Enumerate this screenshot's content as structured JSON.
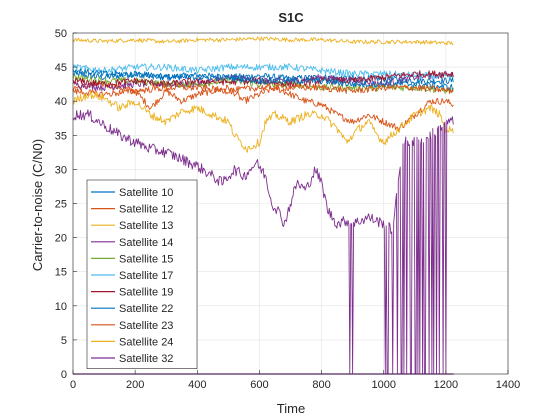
{
  "chart_data": {
    "type": "line",
    "title": "S1C",
    "xlabel": "Time",
    "ylabel": "Carrier-to-noise (C/N0)",
    "xlim": [
      0,
      1400
    ],
    "ylim": [
      0,
      50
    ],
    "xticks": [
      "0",
      "200",
      "400",
      "600",
      "800",
      "1000",
      "1200",
      "1400"
    ],
    "yticks": [
      "0",
      "5",
      "10",
      "15",
      "20",
      "25",
      "30",
      "35",
      "40",
      "45",
      "50"
    ],
    "grid": true,
    "legend_position": "lower-left",
    "series": [
      {
        "name": "Satellite 10",
        "color": "#0072BD",
        "noise": 0.5,
        "points": [
          [
            0,
            44.0
          ],
          [
            100,
            43.5
          ],
          [
            200,
            44.0
          ],
          [
            300,
            43.5
          ],
          [
            400,
            43.8
          ],
          [
            500,
            43.5
          ],
          [
            600,
            43.7
          ],
          [
            700,
            43.3
          ],
          [
            800,
            43.5
          ],
          [
            900,
            43.3
          ],
          [
            1000,
            43.3
          ],
          [
            1100,
            43.0
          ],
          [
            1225,
            43.0
          ]
        ]
      },
      {
        "name": "Satellite 12",
        "color": "#D95319",
        "noise": 0.5,
        "points": [
          [
            0,
            42.0
          ],
          [
            100,
            42.5
          ],
          [
            200,
            41.5
          ],
          [
            250,
            39.0
          ],
          [
            300,
            41.5
          ],
          [
            350,
            40.0
          ],
          [
            400,
            41.0
          ],
          [
            500,
            42.0
          ],
          [
            550,
            40.0
          ],
          [
            600,
            41.0
          ],
          [
            650,
            42.0
          ],
          [
            700,
            41.0
          ],
          [
            750,
            40.0
          ],
          [
            800,
            39.5
          ],
          [
            850,
            38.0
          ],
          [
            900,
            37.0
          ],
          [
            950,
            38.0
          ],
          [
            1000,
            37.0
          ],
          [
            1050,
            36.0
          ],
          [
            1100,
            38.0
          ],
          [
            1150,
            40.0
          ],
          [
            1200,
            40.0
          ],
          [
            1225,
            39.5
          ]
        ]
      },
      {
        "name": "Satellite 13",
        "color": "#EDB120",
        "noise": 0.3,
        "points": [
          [
            0,
            49.0
          ],
          [
            100,
            48.8
          ],
          [
            200,
            49.0
          ],
          [
            300,
            48.7
          ],
          [
            400,
            49.0
          ],
          [
            500,
            49.0
          ],
          [
            600,
            49.2
          ],
          [
            700,
            49.0
          ],
          [
            800,
            49.0
          ],
          [
            900,
            48.7
          ],
          [
            1000,
            48.7
          ],
          [
            1100,
            48.7
          ],
          [
            1225,
            48.5
          ]
        ]
      },
      {
        "name": "Satellite 14",
        "color": "#7E2F8E",
        "noise": 0.5,
        "points": [
          [
            0,
            42.5
          ],
          [
            100,
            42.0
          ],
          [
            200,
            42.5
          ],
          [
            300,
            42.5
          ],
          [
            400,
            42.5
          ],
          [
            500,
            43.5
          ],
          [
            600,
            43.0
          ],
          [
            700,
            43.0
          ],
          [
            800,
            43.5
          ],
          [
            900,
            43.0
          ],
          [
            1000,
            42.5
          ],
          [
            1100,
            43.5
          ],
          [
            1225,
            44.0
          ]
        ]
      },
      {
        "name": "Satellite 15",
        "color": "#77AC30",
        "noise": 0.5,
        "points": [
          [
            0,
            43.5
          ],
          [
            100,
            43.0
          ],
          [
            200,
            43.0
          ],
          [
            300,
            42.5
          ],
          [
            400,
            42.5
          ],
          [
            500,
            43.0
          ],
          [
            600,
            42.5
          ],
          [
            700,
            42.5
          ],
          [
            800,
            42.0
          ],
          [
            900,
            42.0
          ],
          [
            1000,
            42.0
          ],
          [
            1100,
            42.0
          ],
          [
            1225,
            41.5
          ]
        ]
      },
      {
        "name": "Satellite 17",
        "color": "#4DBEEE",
        "noise": 0.5,
        "points": [
          [
            0,
            45.0
          ],
          [
            100,
            44.5
          ],
          [
            200,
            45.0
          ],
          [
            300,
            45.0
          ],
          [
            400,
            44.5
          ],
          [
            500,
            45.0
          ],
          [
            600,
            45.0
          ],
          [
            700,
            45.0
          ],
          [
            800,
            44.5
          ],
          [
            900,
            44.0
          ],
          [
            1000,
            44.0
          ],
          [
            1100,
            43.8
          ],
          [
            1225,
            43.5
          ]
        ]
      },
      {
        "name": "Satellite 19",
        "color": "#A2142F",
        "noise": 0.5,
        "points": [
          [
            0,
            43.0
          ],
          [
            100,
            42.5
          ],
          [
            200,
            43.0
          ],
          [
            300,
            42.5
          ],
          [
            400,
            43.0
          ],
          [
            500,
            42.8
          ],
          [
            600,
            43.0
          ],
          [
            700,
            42.5
          ],
          [
            800,
            43.0
          ],
          [
            900,
            43.0
          ],
          [
            1000,
            43.5
          ],
          [
            1100,
            44.0
          ],
          [
            1225,
            44.0
          ]
        ]
      },
      {
        "name": "Satellite 22",
        "color": "#0072BD",
        "noise": 0.5,
        "points": [
          [
            0,
            44.5
          ],
          [
            100,
            44.0
          ],
          [
            200,
            44.0
          ],
          [
            300,
            43.5
          ],
          [
            400,
            43.5
          ],
          [
            500,
            43.5
          ],
          [
            600,
            43.0
          ],
          [
            700,
            43.0
          ],
          [
            800,
            43.0
          ],
          [
            900,
            42.5
          ],
          [
            1000,
            42.5
          ],
          [
            1100,
            42.5
          ],
          [
            1225,
            42.0
          ]
        ]
      },
      {
        "name": "Satellite 23",
        "color": "#D95319",
        "noise": 0.5,
        "points": [
          [
            0,
            41.5
          ],
          [
            100,
            41.0
          ],
          [
            200,
            41.5
          ],
          [
            300,
            42.0
          ],
          [
            400,
            42.0
          ],
          [
            500,
            41.5
          ],
          [
            600,
            42.0
          ],
          [
            700,
            42.0
          ],
          [
            800,
            42.0
          ],
          [
            900,
            41.5
          ],
          [
            1000,
            42.0
          ],
          [
            1100,
            42.0
          ],
          [
            1225,
            41.5
          ]
        ]
      },
      {
        "name": "Satellite 24",
        "color": "#EDB120",
        "noise": 0.6,
        "points": [
          [
            0,
            40.0
          ],
          [
            50,
            41.0
          ],
          [
            100,
            40.5
          ],
          [
            150,
            39.0
          ],
          [
            200,
            40.0
          ],
          [
            250,
            38.0
          ],
          [
            300,
            37.0
          ],
          [
            350,
            38.5
          ],
          [
            400,
            39.0
          ],
          [
            450,
            38.0
          ],
          [
            500,
            37.0
          ],
          [
            520,
            35.0
          ],
          [
            560,
            33.0
          ],
          [
            600,
            34.0
          ],
          [
            620,
            37.0
          ],
          [
            650,
            38.0
          ],
          [
            700,
            37.0
          ],
          [
            750,
            38.0
          ],
          [
            800,
            38.0
          ],
          [
            850,
            36.0
          ],
          [
            880,
            34.0
          ],
          [
            920,
            36.0
          ],
          [
            950,
            37.0
          ],
          [
            980,
            35.0
          ],
          [
            1000,
            34.0
          ],
          [
            1050,
            36.0
          ],
          [
            1100,
            38.0
          ],
          [
            1150,
            39.0
          ],
          [
            1180,
            38.0
          ],
          [
            1200,
            36.0
          ],
          [
            1225,
            35.5
          ]
        ]
      },
      {
        "name": "Satellite 32",
        "color": "#7E2F8E",
        "noise": 0.8,
        "points": [
          [
            0,
            38.0
          ],
          [
            50,
            38.0
          ],
          [
            100,
            36.5
          ],
          [
            150,
            35.0
          ],
          [
            200,
            34.0
          ],
          [
            250,
            33.0
          ],
          [
            300,
            32.5
          ],
          [
            350,
            31.5
          ],
          [
            400,
            30.5
          ],
          [
            450,
            29.0
          ],
          [
            480,
            28.0
          ],
          [
            520,
            30.0
          ],
          [
            550,
            29.0
          ],
          [
            590,
            31.0
          ],
          [
            620,
            29.0
          ],
          [
            640,
            25.0
          ],
          [
            660,
            24.0
          ],
          [
            680,
            22.0
          ],
          [
            700,
            25.0
          ],
          [
            720,
            28.0
          ],
          [
            750,
            27.0
          ],
          [
            780,
            30.0
          ],
          [
            800,
            28.0
          ],
          [
            820,
            24.0
          ],
          [
            850,
            22.0
          ],
          [
            880,
            22.5
          ],
          [
            900,
            22.0
          ],
          [
            950,
            23.0
          ],
          [
            1000,
            22.0
          ],
          [
            1030,
            21.0
          ],
          [
            1060,
            34.0
          ],
          [
            1100,
            34.0
          ],
          [
            1150,
            35.0
          ],
          [
            1180,
            36.0
          ],
          [
            1200,
            37.0
          ],
          [
            1225,
            37.0
          ]
        ]
      }
    ],
    "satellite_32_dropout_times": [
      885,
      888,
      905,
      1005,
      1010,
      1015,
      1030,
      1045,
      1055,
      1060,
      1065,
      1075,
      1085,
      1090,
      1100,
      1105,
      1110,
      1115,
      1125,
      1130,
      1135,
      1145,
      1155,
      1160,
      1170,
      1180,
      1190,
      1200
    ],
    "satellite_32_recovery_times": [
      1210,
      1215,
      1220,
      1225
    ]
  }
}
